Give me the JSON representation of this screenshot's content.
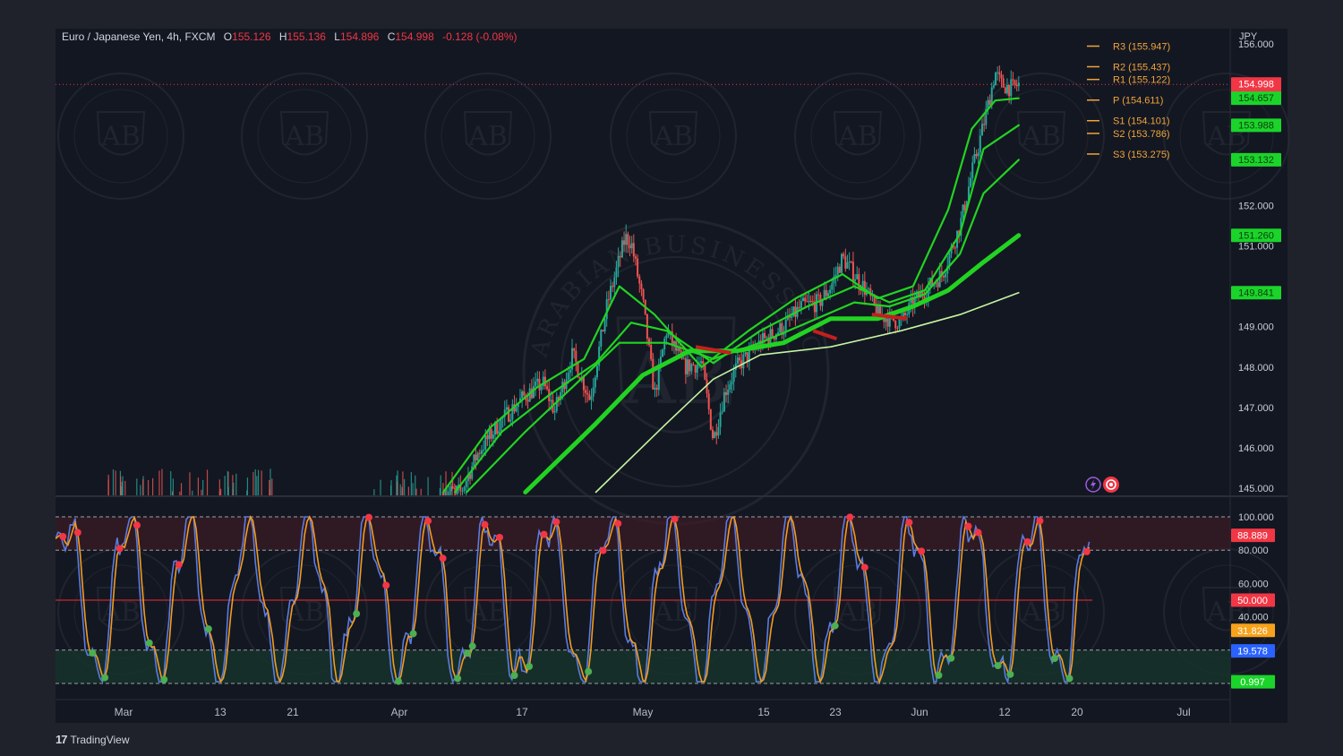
{
  "header": {
    "symbol": "Euro / Japanese Yen, 4h, FXCM",
    "o_label": "O",
    "o_value": "155.126",
    "h_label": "H",
    "h_value": "155.136",
    "l_label": "L",
    "l_value": "154.896",
    "c_label": "C",
    "c_value": "154.998",
    "change": "-0.128 (-0.08%)"
  },
  "currency": "JPY",
  "brand": {
    "name": "TradingView",
    "logo": "17"
  },
  "watermark": {
    "text": "ARABIAN BUSINESS ACADEMY",
    "initials": "AB"
  },
  "colors": {
    "background": "#131722",
    "frame": "#1f222b",
    "up": "#26a69a",
    "down": "#ef5350",
    "ma": "#22d322",
    "k_line": "#5a7be0",
    "d_line": "#f29b1f",
    "pivot": "#f0a43a"
  },
  "chart_data": [
    {
      "type": "line",
      "panel": "price",
      "title": "",
      "ylim": [
        144.8,
        156.1
      ],
      "y_ticks": [
        "145.000",
        "146.000",
        "147.000",
        "148.000",
        "149.000",
        "151.000",
        "152.000",
        "156.000"
      ],
      "x_ticks": [
        "Mar",
        "13",
        "21",
        "Apr",
        "17",
        "May",
        "15",
        "23",
        "Jun",
        "12",
        "20",
        "Jul"
      ],
      "price_points": [
        [
          0.345,
          144.9
        ],
        [
          0.36,
          145.9
        ],
        [
          0.38,
          146.7
        ],
        [
          0.4,
          147.3
        ],
        [
          0.415,
          147.6
        ],
        [
          0.425,
          146.9
        ],
        [
          0.44,
          148.3
        ],
        [
          0.455,
          147.2
        ],
        [
          0.47,
          149.6
        ],
        [
          0.485,
          151.2
        ],
        [
          0.49,
          151.1
        ],
        [
          0.5,
          149.6
        ],
        [
          0.51,
          147.3
        ],
        [
          0.52,
          148.9
        ],
        [
          0.535,
          148.0
        ],
        [
          0.55,
          148.1
        ],
        [
          0.56,
          146.2
        ],
        [
          0.57,
          147.4
        ],
        [
          0.58,
          148.0
        ],
        [
          0.6,
          148.6
        ],
        [
          0.62,
          149.0
        ],
        [
          0.635,
          149.5
        ],
        [
          0.65,
          149.6
        ],
        [
          0.66,
          150.0
        ],
        [
          0.67,
          150.7
        ],
        [
          0.68,
          150.3
        ],
        [
          0.69,
          149.9
        ],
        [
          0.7,
          149.3
        ],
        [
          0.72,
          149.1
        ],
        [
          0.73,
          149.6
        ],
        [
          0.74,
          149.9
        ],
        [
          0.755,
          150.3
        ],
        [
          0.77,
          151.5
        ],
        [
          0.78,
          152.8
        ],
        [
          0.79,
          154.0
        ],
        [
          0.8,
          155.3
        ],
        [
          0.805,
          155.0
        ],
        [
          0.815,
          154.9
        ],
        [
          0.82,
          155.0
        ]
      ],
      "moving_averages": [
        {
          "style": "thick",
          "points": [
            [
              0.4,
              144.9
            ],
            [
              0.46,
              146.6
            ],
            [
              0.5,
              147.8
            ],
            [
              0.54,
              148.4
            ],
            [
              0.58,
              148.4
            ],
            [
              0.62,
              148.6
            ],
            [
              0.66,
              149.2
            ],
            [
              0.7,
              149.2
            ],
            [
              0.73,
              149.5
            ],
            [
              0.76,
              149.9
            ],
            [
              0.79,
              150.6
            ],
            [
              0.82,
              151.26
            ]
          ]
        },
        {
          "style": "thin-light",
          "points": [
            [
              0.46,
              144.9
            ],
            [
              0.52,
              146.6
            ],
            [
              0.56,
              147.7
            ],
            [
              0.6,
              148.3
            ],
            [
              0.66,
              148.5
            ],
            [
              0.72,
              148.9
            ],
            [
              0.77,
              149.3
            ],
            [
              0.82,
              149.841
            ]
          ]
        },
        {
          "style": "medium",
          "points": [
            [
              0.35,
              144.9
            ],
            [
              0.4,
              146.4
            ],
            [
              0.44,
              147.5
            ],
            [
              0.48,
              148.6
            ],
            [
              0.52,
              148.6
            ],
            [
              0.56,
              148.2
            ],
            [
              0.6,
              148.6
            ],
            [
              0.64,
              149.1
            ],
            [
              0.68,
              149.6
            ],
            [
              0.71,
              149.5
            ],
            [
              0.74,
              149.8
            ],
            [
              0.77,
              150.8
            ],
            [
              0.79,
              152.3
            ],
            [
              0.82,
              153.132
            ]
          ]
        },
        {
          "style": "medium",
          "points": [
            [
              0.34,
              144.9
            ],
            [
              0.38,
              146.4
            ],
            [
              0.42,
              147.3
            ],
            [
              0.46,
              148.1
            ],
            [
              0.49,
              149.1
            ],
            [
              0.52,
              148.9
            ],
            [
              0.56,
              148.1
            ],
            [
              0.6,
              148.9
            ],
            [
              0.64,
              149.5
            ],
            [
              0.68,
              150.0
            ],
            [
              0.71,
              149.6
            ],
            [
              0.74,
              149.9
            ],
            [
              0.77,
              151.3
            ],
            [
              0.79,
              153.4
            ],
            [
              0.82,
              153.988
            ]
          ]
        },
        {
          "style": "medium",
          "points": [
            [
              0.33,
              144.9
            ],
            [
              0.37,
              146.5
            ],
            [
              0.41,
              147.5
            ],
            [
              0.45,
              148.2
            ],
            [
              0.48,
              150.0
            ],
            [
              0.51,
              149.3
            ],
            [
              0.55,
              148.0
            ],
            [
              0.59,
              148.9
            ],
            [
              0.63,
              149.7
            ],
            [
              0.67,
              150.3
            ],
            [
              0.7,
              149.7
            ],
            [
              0.73,
              150.0
            ],
            [
              0.76,
              151.9
            ],
            [
              0.78,
              153.9
            ],
            [
              0.8,
              154.6
            ],
            [
              0.82,
              154.657
            ]
          ]
        }
      ],
      "price_labels": [
        {
          "value": "154.998",
          "y": 154.998,
          "color": "#f23645",
          "timer": "02:29:46"
        },
        {
          "value": "154.657",
          "y": 154.657,
          "color": "#1bd42a"
        },
        {
          "value": "153.988",
          "y": 153.988,
          "color": "#1bd42a"
        },
        {
          "value": "153.132",
          "y": 153.132,
          "color": "#1bd42a"
        },
        {
          "value": "151.260",
          "y": 151.26,
          "color": "#1bd42a"
        },
        {
          "value": "149.841",
          "y": 149.841,
          "color": "#1bd42a"
        }
      ],
      "pivots": [
        {
          "label": "R3 (155.947)",
          "y": 155.947
        },
        {
          "label": "R2 (155.437)",
          "y": 155.437
        },
        {
          "label": "R1 (155.122)",
          "y": 155.122
        },
        {
          "label": "P (154.611)",
          "y": 154.611
        },
        {
          "label": "S1 (154.101)",
          "y": 154.101
        },
        {
          "label": "S2 (153.786)",
          "y": 153.786
        },
        {
          "label": "S3 (153.275)",
          "y": 153.275
        }
      ]
    },
    {
      "type": "line",
      "panel": "oscillator",
      "title": "",
      "ylim": [
        0,
        100
      ],
      "y_ticks": [
        "100.000",
        "80.000",
        "60.000",
        "40.000"
      ],
      "levels": [
        100,
        80,
        50,
        20,
        0
      ],
      "value_labels": [
        {
          "value": "88.889",
          "y": 88.889,
          "color": "#f23645"
        },
        {
          "value": "50.000",
          "y": 50,
          "color": "#f23645"
        },
        {
          "value": "31.826",
          "y": 31.826,
          "color": "#f7a21b"
        },
        {
          "value": "19.578",
          "y": 19.578,
          "color": "#2962ff"
        },
        {
          "value": "0.997",
          "y": 0.997,
          "color": "#1bd42a"
        }
      ]
    }
  ]
}
